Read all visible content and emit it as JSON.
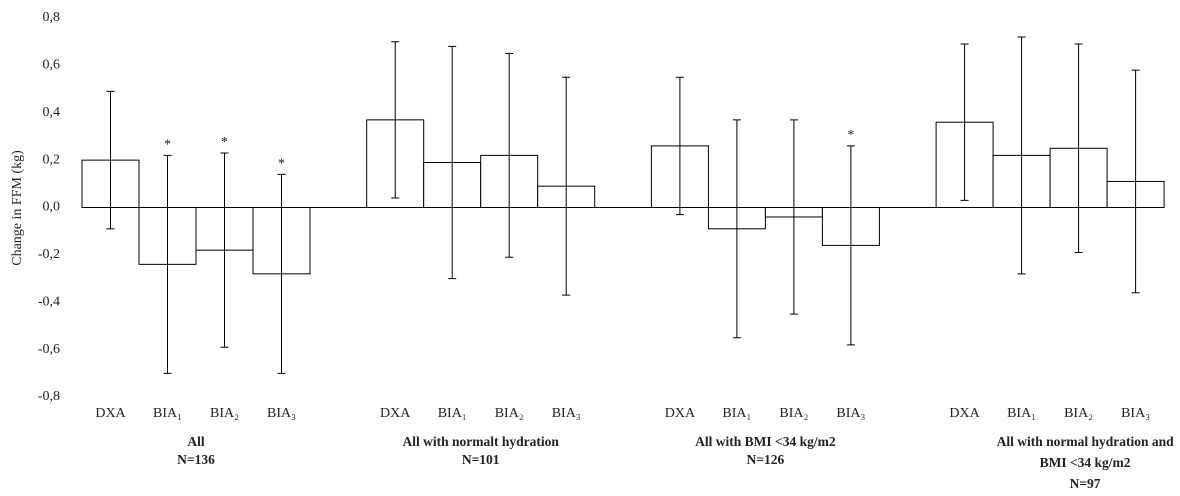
{
  "chart_data": {
    "type": "bar",
    "y_label": "Change in FFM (kg)",
    "ylim": [
      -0.8,
      0.8
    ],
    "yticks": [
      {
        "value": -0.8,
        "label": "-0,8"
      },
      {
        "value": -0.6,
        "label": "-0,6"
      },
      {
        "value": -0.4,
        "label": "-0,4"
      },
      {
        "value": -0.2,
        "label": "-0,2"
      },
      {
        "value": 0,
        "label": "0,0"
      },
      {
        "value": 0.2,
        "label": "0,2"
      },
      {
        "value": 0.4,
        "label": "0,4"
      },
      {
        "value": 0.6,
        "label": "0,6"
      },
      {
        "value": 0.8,
        "label": "0,8"
      }
    ],
    "color": "#ffffff",
    "edge_color": "#000000",
    "groups": [
      {
        "label": [
          "All",
          "N=136"
        ],
        "categories": [
          "DXA",
          "BIA₁",
          "BIA₂",
          "BIA₃"
        ],
        "values": [
          0.2,
          -0.24,
          -0.18,
          -0.28
        ],
        "errors": [
          0.29,
          0.46,
          0.41,
          0.42
        ],
        "markers": [
          null,
          "*",
          "*",
          "*"
        ]
      },
      {
        "label": [
          "All with  normalt  hydration",
          "N=101"
        ],
        "categories": [
          "DXA",
          "BIA₁",
          "BIA₂",
          "BIA₃"
        ],
        "values": [
          0.37,
          0.19,
          0.22,
          0.09
        ],
        "errors": [
          0.33,
          0.49,
          0.43,
          0.46
        ],
        "markers": [
          null,
          null,
          null,
          null
        ]
      },
      {
        "label": [
          "All with  BMI <34 kg/m2",
          "N=126"
        ],
        "categories": [
          "DXA",
          "BIA₁",
          "BIA₂",
          "BIA₃"
        ],
        "values": [
          0.26,
          -0.09,
          -0.04,
          -0.16
        ],
        "errors": [
          0.29,
          0.46,
          0.41,
          0.42
        ],
        "markers": [
          null,
          null,
          null,
          "*"
        ]
      },
      {
        "label": [
          "All with  normal hydration  and",
          "BMI <34 kg/m2",
          "N=97"
        ],
        "categories": [
          "DXA",
          "BIA₁",
          "BIA₂",
          "BIA₃"
        ],
        "values": [
          0.36,
          0.22,
          0.25,
          0.11
        ],
        "errors": [
          0.33,
          0.5,
          0.44,
          0.47
        ],
        "markers": [
          null,
          null,
          null,
          null
        ]
      }
    ]
  }
}
